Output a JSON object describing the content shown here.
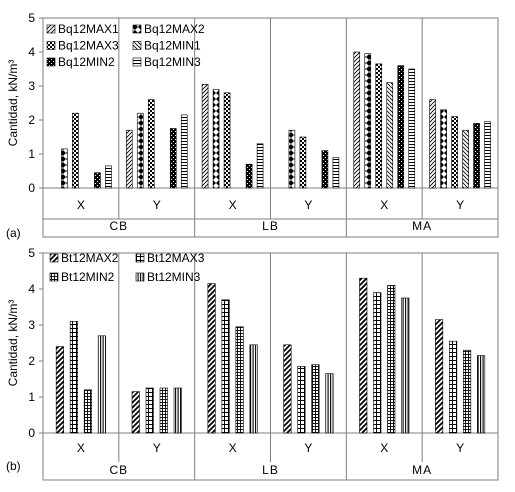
{
  "chart_data": [
    {
      "type": "bar",
      "panel_label": "(a)",
      "ylabel": "Cantidad, kN/m³",
      "ylim": [
        0,
        5
      ],
      "yticks": [
        "0",
        "1",
        "2",
        "3",
        "4",
        "5"
      ],
      "groups": [
        "CB",
        "LB",
        "MA"
      ],
      "subcategories": [
        "X",
        "Y"
      ],
      "categories": [
        "CB X",
        "CB Y",
        "LB X",
        "LB Y",
        "MA X",
        "MA Y"
      ],
      "series": [
        {
          "name": "Bq12MAX1",
          "pattern": "diag-fwd",
          "values": [
            0,
            1.7,
            3.05,
            0,
            4.0,
            2.6
          ]
        },
        {
          "name": "Bq12MAX2",
          "pattern": "diamond",
          "values": [
            1.15,
            2.2,
            2.9,
            1.7,
            3.95,
            2.3
          ]
        },
        {
          "name": "Bq12MAX3",
          "pattern": "checker",
          "values": [
            2.2,
            2.6,
            2.8,
            1.5,
            3.65,
            2.1
          ]
        },
        {
          "name": "Bq12MIN1",
          "pattern": "diag-back",
          "values": [
            0,
            0,
            0,
            0,
            3.1,
            1.7
          ]
        },
        {
          "name": "Bq12MIN2",
          "pattern": "dark-check",
          "values": [
            0.45,
            1.75,
            0.7,
            1.1,
            3.6,
            1.9
          ]
        },
        {
          "name": "Bq12MIN3",
          "pattern": "horiz",
          "values": [
            0.65,
            2.15,
            1.3,
            0.9,
            3.5,
            1.95
          ]
        }
      ]
    },
    {
      "type": "bar",
      "panel_label": "(b)",
      "ylabel": "Cantidad, kN/m³",
      "ylim": [
        0,
        5
      ],
      "yticks": [
        "0",
        "1",
        "2",
        "3",
        "4",
        "5"
      ],
      "groups": [
        "CB",
        "LB",
        "MA"
      ],
      "subcategories": [
        "X",
        "Y"
      ],
      "categories": [
        "CB X",
        "CB Y",
        "LB X",
        "LB Y",
        "MA X",
        "MA Y"
      ],
      "series": [
        {
          "name": "Bt12MAX2",
          "pattern": "diag-thick",
          "values": [
            2.4,
            1.15,
            4.15,
            2.45,
            4.3,
            3.15
          ]
        },
        {
          "name": "Bt12MAX3",
          "pattern": "grid",
          "values": [
            3.1,
            1.25,
            3.7,
            1.85,
            3.9,
            2.55
          ]
        },
        {
          "name": "Bt12MIN2",
          "pattern": "grid-fine",
          "values": [
            1.2,
            1.25,
            2.95,
            1.9,
            4.1,
            2.3
          ]
        },
        {
          "name": "Bt12MIN3",
          "pattern": "vert",
          "values": [
            2.7,
            1.25,
            2.45,
            1.65,
            3.75,
            2.15
          ]
        }
      ]
    }
  ]
}
